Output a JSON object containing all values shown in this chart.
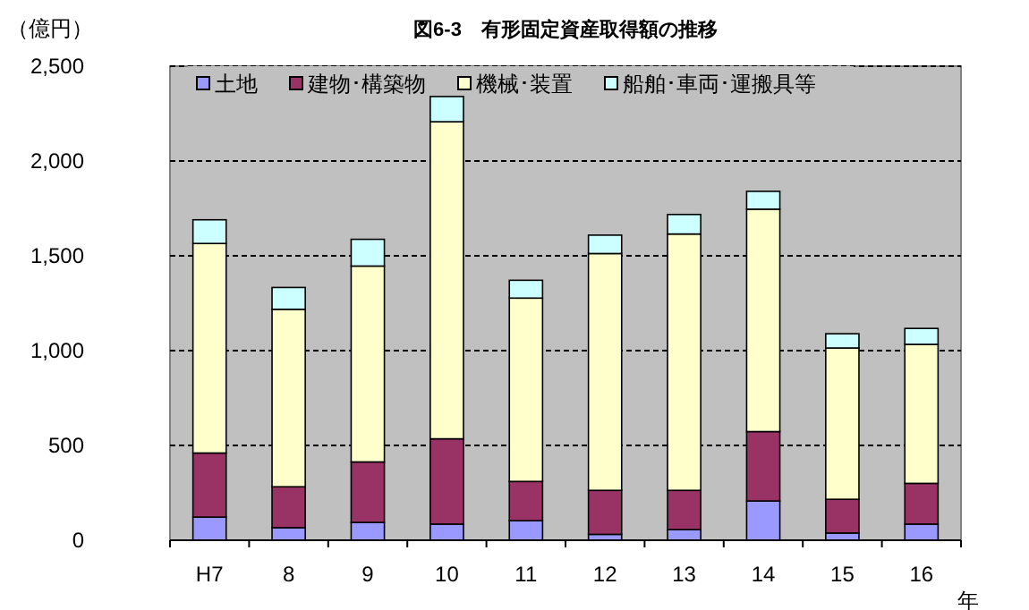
{
  "chart_data": {
    "type": "bar",
    "stacked": true,
    "title": "図6-3　有形固定資産取得額の推移",
    "ylabel": "（億円）",
    "xlabel": "年",
    "categories": [
      "H7",
      "8",
      "9",
      "10",
      "11",
      "12",
      "13",
      "14",
      "15",
      "16"
    ],
    "series": [
      {
        "name": "土地",
        "color": "#9999ff",
        "values": [
          122,
          66,
          94,
          85,
          103,
          31,
          56,
          207,
          38,
          85
        ]
      },
      {
        "name": "建物･構築物",
        "color": "#993366",
        "values": [
          338,
          216,
          319,
          450,
          207,
          232,
          207,
          366,
          178,
          215
        ]
      },
      {
        "name": "機械･装置",
        "color": "#ffffcc",
        "values": [
          1105,
          936,
          1033,
          1672,
          967,
          1249,
          1352,
          1173,
          798,
          733
        ]
      },
      {
        "name": "船舶･車両･運搬具等",
        "color": "#ccffff",
        "values": [
          125,
          115,
          141,
          133,
          94,
          97,
          103,
          94,
          75,
          84
        ]
      }
    ],
    "ylim": [
      0,
      2500
    ],
    "yticks": [
      0,
      500,
      {
        "value": 1000,
        "label": "1,000"
      },
      {
        "value": 1500,
        "label": "1,500"
      },
      {
        "value": 2000,
        "label": "2,000"
      },
      {
        "value": 2500,
        "label": "2,500"
      }
    ],
    "grid": "y",
    "legend": "top"
  }
}
